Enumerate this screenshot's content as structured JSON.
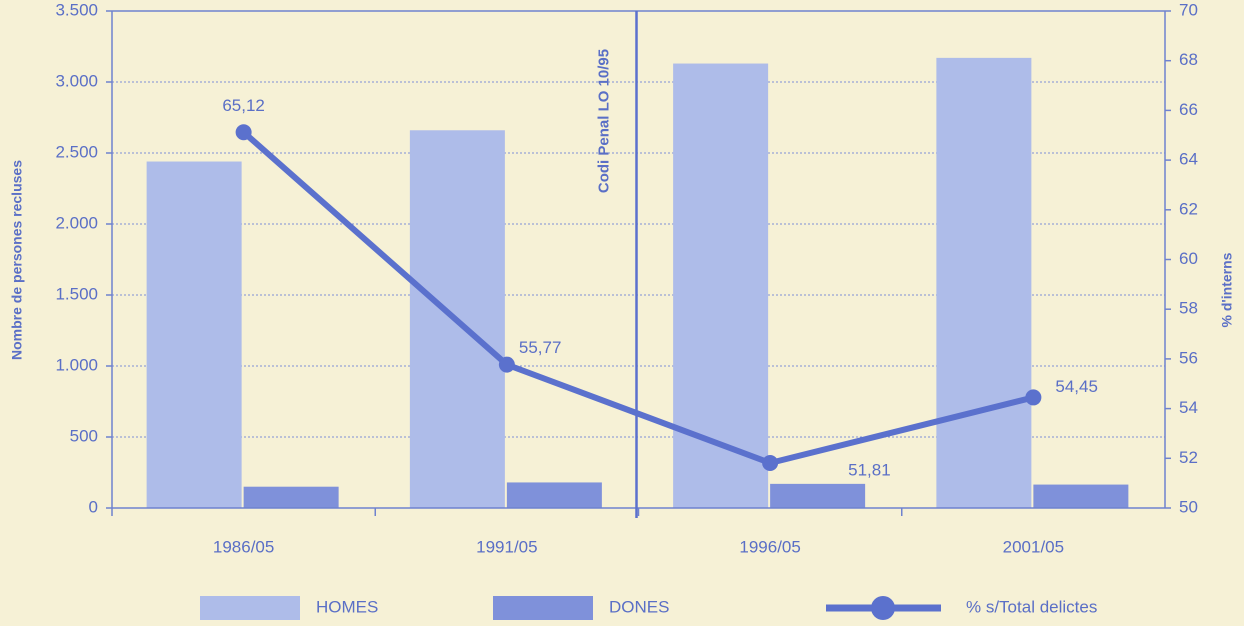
{
  "chart_data": {
    "type": "bar",
    "categories": [
      "1986/05",
      "1991/05",
      "1996/05",
      "2001/05"
    ],
    "series": [
      {
        "name": "HOMES",
        "color": "#aebce9",
        "values": [
          2440,
          2660,
          3130,
          3170
        ]
      },
      {
        "name": "DONES",
        "color": "#7f91da",
        "values": [
          150,
          180,
          170,
          165
        ]
      },
      {
        "name": "% s/Total delictes",
        "color": "#5b71cd",
        "type": "line",
        "axis": "y2",
        "values": [
          65.12,
          55.77,
          51.81,
          54.45
        ],
        "value_labels": [
          "65,12",
          "55,77",
          "51,81",
          "54,45"
        ]
      }
    ],
    "y_label": "Nombre de persones recluses",
    "y2_label": "% d'interns",
    "ylim": [
      0,
      3500
    ],
    "yticks": [
      0,
      500,
      {
        "value": 1000,
        "label": "1.000"
      },
      {
        "value": 1500,
        "label": "1.500"
      },
      {
        "value": 2000,
        "label": "2.000"
      },
      {
        "value": 2500,
        "label": "2.500"
      },
      {
        "value": 3000,
        "label": "3.000"
      },
      {
        "value": 3500,
        "label": "3.500"
      }
    ],
    "y2lim": [
      50,
      70
    ],
    "y2ticks": [
      50,
      52,
      54,
      56,
      58,
      60,
      62,
      64,
      66,
      68,
      70
    ],
    "annotation": "Codi Penal LO 10/95",
    "grid": true,
    "legend": "bottom"
  }
}
